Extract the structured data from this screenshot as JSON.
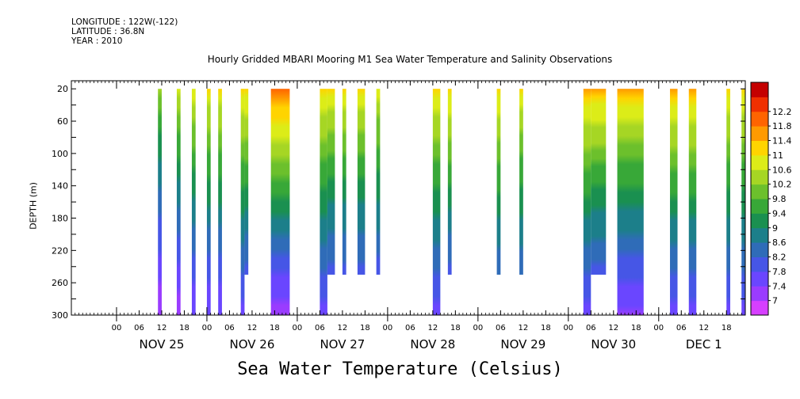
{
  "header": {
    "longitude": "LONGITUDE : 122W(-122)",
    "latitude": "LATITUDE : 36.8N",
    "year": "YEAR : 2010"
  },
  "chart_data": {
    "type": "heatmap",
    "title": "Hourly Gridded MBARI Mooring M1 Sea Water Temperature and Salinity Observations",
    "xlabel": "Sea Water Temperature (Celsius)",
    "ylabel": "DEPTH (m)",
    "x_unit": "hours since NOV 25 00:00, 2010",
    "xlim": [
      -12,
      167
    ],
    "ylim": [
      300,
      10
    ],
    "yticks": [
      20,
      60,
      100,
      140,
      180,
      220,
      260,
      300
    ],
    "hour_ticks": [
      "00",
      "06",
      "12",
      "18",
      "00",
      "06",
      "12",
      "18",
      "00",
      "06",
      "12",
      "18",
      "00",
      "06",
      "12",
      "18",
      "00",
      "06",
      "12",
      "18",
      "00",
      "06",
      "12",
      "18",
      "00",
      "06",
      "12",
      "18"
    ],
    "day_labels": [
      {
        "label": "NOV 25",
        "hour": 12
      },
      {
        "label": "NOV 26",
        "hour": 36
      },
      {
        "label": "NOV 27",
        "hour": 60
      },
      {
        "label": "NOV 28",
        "hour": 84
      },
      {
        "label": "NOV 29",
        "hour": 108
      },
      {
        "label": "NOV 30",
        "hour": 132
      },
      {
        "label": "DEC  1",
        "hour": 156
      }
    ],
    "colorbar": {
      "levels": [
        7,
        7.4,
        7.8,
        8.2,
        8.6,
        9,
        9.4,
        9.8,
        10.2,
        10.6,
        11,
        11.4,
        11.8,
        12.2
      ],
      "labels": [
        "7",
        "7.4",
        "7.8",
        "8.2",
        "8.6",
        "9",
        "9.4",
        "9.8",
        "10.2",
        "10.6",
        "11",
        "11.4",
        "11.8",
        "12.2"
      ],
      "colors": [
        "#d63fff",
        "#9a3cff",
        "#6a46ff",
        "#4656e6",
        "#2f6cb8",
        "#1c7f8a",
        "#1a9050",
        "#38a838",
        "#6cc02c",
        "#a6d624",
        "#dcec18",
        "#ffd400",
        "#ff9a00",
        "#ff6400",
        "#f03000",
        "#c40000"
      ]
    },
    "segments": [
      {
        "start": 11,
        "end": 12,
        "top_temp": 10.2,
        "bottom_temp": 7.0,
        "bottom_depth": 300
      },
      {
        "start": 16,
        "end": 17,
        "top_temp": 10.8,
        "bottom_temp": 7.0,
        "bottom_depth": 300
      },
      {
        "start": 20,
        "end": 21,
        "top_temp": 10.9,
        "bottom_temp": 7.4,
        "bottom_depth": 300
      },
      {
        "start": 24,
        "end": 25,
        "top_temp": 11.0,
        "bottom_temp": 7.4,
        "bottom_depth": 300
      },
      {
        "start": 27,
        "end": 28,
        "top_temp": 11.0,
        "bottom_temp": 7.4,
        "bottom_depth": 300
      },
      {
        "start": 33,
        "end": 34,
        "top_temp": 11.2,
        "bottom_temp": 7.6,
        "bottom_depth": 300
      },
      {
        "start": 34,
        "end": 35,
        "top_temp": 11.2,
        "bottom_temp": 8.0,
        "bottom_depth": 250
      },
      {
        "start": 41,
        "end": 46,
        "top_temp": 11.9,
        "bottom_temp": 7.1,
        "bottom_depth": 300
      },
      {
        "start": 54,
        "end": 56,
        "top_temp": 11.2,
        "bottom_temp": 7.6,
        "bottom_depth": 300
      },
      {
        "start": 56,
        "end": 58,
        "top_temp": 11.0,
        "bottom_temp": 8.0,
        "bottom_depth": 250
      },
      {
        "start": 60,
        "end": 61,
        "top_temp": 11.0,
        "bottom_temp": 8.0,
        "bottom_depth": 250
      },
      {
        "start": 64,
        "end": 66,
        "top_temp": 11.0,
        "bottom_temp": 8.0,
        "bottom_depth": 250
      },
      {
        "start": 69,
        "end": 70,
        "top_temp": 10.8,
        "bottom_temp": 8.0,
        "bottom_depth": 250
      },
      {
        "start": 84,
        "end": 86,
        "top_temp": 11.2,
        "bottom_temp": 7.6,
        "bottom_depth": 300
      },
      {
        "start": 88,
        "end": 89,
        "top_temp": 11.2,
        "bottom_temp": 8.0,
        "bottom_depth": 250
      },
      {
        "start": 101,
        "end": 102,
        "top_temp": 11.2,
        "bottom_temp": 8.2,
        "bottom_depth": 250
      },
      {
        "start": 107,
        "end": 108,
        "top_temp": 11.0,
        "bottom_temp": 8.2,
        "bottom_depth": 250
      },
      {
        "start": 124,
        "end": 126,
        "top_temp": 11.4,
        "bottom_temp": 7.6,
        "bottom_depth": 300
      },
      {
        "start": 126,
        "end": 130,
        "top_temp": 11.4,
        "bottom_temp": 8.0,
        "bottom_depth": 250
      },
      {
        "start": 133,
        "end": 140,
        "top_temp": 11.4,
        "bottom_temp": 7.3,
        "bottom_depth": 300
      },
      {
        "start": 147,
        "end": 149,
        "top_temp": 11.4,
        "bottom_temp": 7.6,
        "bottom_depth": 300
      },
      {
        "start": 152,
        "end": 154,
        "top_temp": 11.4,
        "bottom_temp": 7.6,
        "bottom_depth": 300
      },
      {
        "start": 162,
        "end": 163,
        "top_temp": 11.2,
        "bottom_temp": 7.6,
        "bottom_depth": 300
      },
      {
        "start": 166,
        "end": 167,
        "top_temp": 11.2,
        "bottom_temp": 7.6,
        "bottom_depth": 300
      }
    ]
  }
}
